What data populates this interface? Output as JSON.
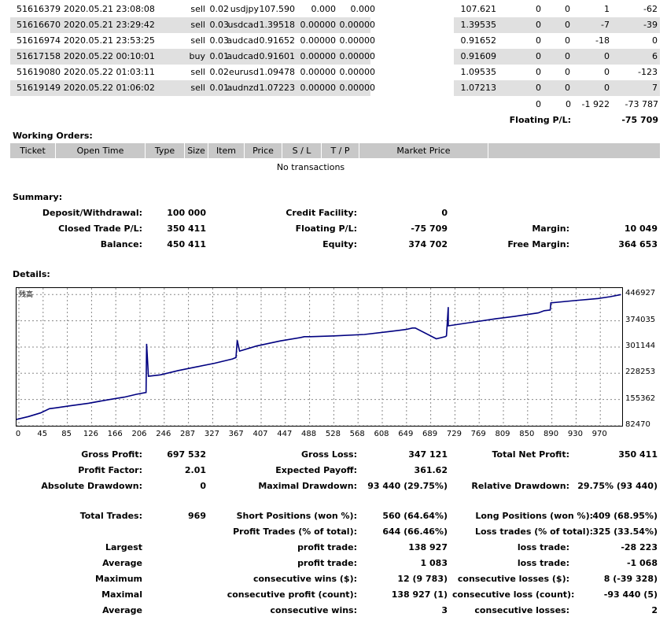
{
  "trades": [
    {
      "ticket": "51616379",
      "time": "2020.05.21 23:08:08",
      "type": "sell",
      "size": "0.02",
      "item": "usdjpy",
      "price": "107.590",
      "sl": "0.000",
      "tp": "0.000",
      "market": "107.621",
      "commission": "0",
      "taxes": "0",
      "swap": "1",
      "profit": "-62",
      "shaded": false
    },
    {
      "ticket": "51616670",
      "time": "2020.05.21 23:29:42",
      "type": "sell",
      "size": "0.03",
      "item": "usdcad",
      "price": "1.39518",
      "sl": "0.00000",
      "tp": "0.00000",
      "market": "1.39535",
      "commission": "0",
      "taxes": "0",
      "swap": "-7",
      "profit": "-39",
      "shaded": true
    },
    {
      "ticket": "51616974",
      "time": "2020.05.21 23:53:25",
      "type": "sell",
      "size": "0.03",
      "item": "audcad",
      "price": "0.91652",
      "sl": "0.00000",
      "tp": "0.00000",
      "market": "0.91652",
      "commission": "0",
      "taxes": "0",
      "swap": "-18",
      "profit": "0",
      "shaded": false
    },
    {
      "ticket": "51617158",
      "time": "2020.05.22 00:10:01",
      "type": "buy",
      "size": "0.01",
      "item": "audcad",
      "price": "0.91601",
      "sl": "0.00000",
      "tp": "0.00000",
      "market": "0.91609",
      "commission": "0",
      "taxes": "0",
      "swap": "0",
      "profit": "6",
      "shaded": true
    },
    {
      "ticket": "51619080",
      "time": "2020.05.22 01:03:11",
      "type": "sell",
      "size": "0.02",
      "item": "eurusd",
      "price": "1.09478",
      "sl": "0.00000",
      "tp": "0.00000",
      "market": "1.09535",
      "commission": "0",
      "taxes": "0",
      "swap": "0",
      "profit": "-123",
      "shaded": false
    },
    {
      "ticket": "51619149",
      "time": "2020.05.22 01:06:02",
      "type": "sell",
      "size": "0.01",
      "item": "audnzd",
      "price": "1.07223",
      "sl": "0.00000",
      "tp": "0.00000",
      "market": "1.07213",
      "commission": "0",
      "taxes": "0",
      "swap": "0",
      "profit": "7",
      "shaded": true
    }
  ],
  "totals": {
    "commission": "0",
    "taxes": "0",
    "swap": "-1 922",
    "profit": "-73 787"
  },
  "floating": {
    "label": "Floating P/L:",
    "value": "-75 709"
  },
  "working_orders": {
    "title": "Working Orders:",
    "headers": [
      "Ticket",
      "Open Time",
      "Type",
      "Size",
      "Item",
      "Price",
      "S / L",
      "T / P",
      "Market Price"
    ],
    "empty": "No transactions"
  },
  "summary": {
    "title": "Summary:",
    "deposit_label": "Deposit/Withdrawal:",
    "deposit": "100 000",
    "credit_label": "Credit Facility:",
    "credit": "0",
    "closed_label": "Closed Trade P/L:",
    "closed": "350 411",
    "floating_label": "Floating P/L:",
    "floating": "-75 709",
    "margin_label": "Margin:",
    "margin": "10 049",
    "balance_label": "Balance:",
    "balance": "450 411",
    "equity_label": "Equity:",
    "equity": "374 702",
    "free_margin_label": "Free Margin:",
    "free_margin": "364 653"
  },
  "details": {
    "title": "Details:"
  },
  "chart_data": {
    "type": "line",
    "title": "残高",
    "color": "#000080",
    "xlim": [
      0,
      1010
    ],
    "ylim": [
      82470,
      465000
    ],
    "x_ticks": [
      "0",
      "45",
      "85",
      "126",
      "166",
      "206",
      "246",
      "287",
      "327",
      "367",
      "407",
      "447",
      "488",
      "528",
      "568",
      "608",
      "649",
      "689",
      "729",
      "769",
      "809",
      "850",
      "890",
      "930",
      "970"
    ],
    "y_ticks": [
      "446927",
      "374035",
      "301144",
      "228253",
      "155362",
      "82470"
    ],
    "grid": true,
    "series": [
      {
        "x": [
          0,
          20,
          40,
          55,
          65,
          90,
          120,
          150,
          180,
          200,
          216,
          217,
          220,
          220,
          240,
          270,
          300,
          330,
          360,
          366,
          368,
          372,
          372,
          400,
          440,
          475,
          480,
          490,
          530,
          580,
          620,
          650,
          660,
          665,
          700,
          715,
          717,
          720,
          720,
          760,
          800,
          830,
          870,
          880,
          890,
          891,
          930,
          970,
          990,
          1008
        ],
        "y": [
          100000,
          108000,
          118000,
          130000,
          132000,
          138000,
          145000,
          154000,
          162000,
          170000,
          175000,
          310000,
          220000,
          220000,
          224000,
          236000,
          246000,
          256000,
          268000,
          272000,
          320000,
          290000,
          290000,
          304000,
          318000,
          328000,
          330000,
          330000,
          332000,
          336000,
          344000,
          350000,
          354000,
          354000,
          324000,
          330000,
          332000,
          412000,
          360000,
          370000,
          380000,
          386000,
          396000,
          402000,
          404000,
          424000,
          430000,
          436000,
          441000,
          446927
        ]
      }
    ]
  },
  "stats": {
    "gross_profit_label": "Gross Profit:",
    "gross_profit": "697 532",
    "gross_loss_label": "Gross Loss:",
    "gross_loss": "347 121",
    "total_net_label": "Total Net Profit:",
    "total_net": "350 411",
    "profit_factor_label": "Profit Factor:",
    "profit_factor": "2.01",
    "expected_payoff_label": "Expected Payoff:",
    "expected_payoff": "361.62",
    "abs_dd_label": "Absolute Drawdown:",
    "abs_dd": "0",
    "max_dd_label": "Maximal Drawdown:",
    "max_dd": "93 440 (29.75%)",
    "rel_dd_label": "Relative Drawdown:",
    "rel_dd": "29.75% (93 440)",
    "total_trades_label": "Total Trades:",
    "total_trades": "969",
    "short_label": "Short Positions (won %):",
    "short": "560 (64.64%)",
    "long_label": "Long Positions (won %):",
    "long": "409 (68.95%)",
    "profit_trades_label": "Profit Trades (% of total):",
    "profit_trades": "644 (66.46%)",
    "loss_trades_label": "Loss trades (% of total):",
    "loss_trades": "325 (33.54%)",
    "largest_label": "Largest",
    "largest_profit_label": "profit trade:",
    "largest_profit": "138 927",
    "largest_loss_label": "loss trade:",
    "largest_loss": "-28 223",
    "average_label": "Average",
    "average_profit_label": "profit trade:",
    "average_profit": "1 083",
    "average_loss_label": "loss trade:",
    "average_loss": "-1 068",
    "maximum_label": "Maximum",
    "max_cons_wins_label": "consecutive wins ($):",
    "max_cons_wins": "12 (9 783)",
    "max_cons_losses_label": "consecutive losses ($):",
    "max_cons_losses": "8 (-39 328)",
    "maximal_label": "Maximal",
    "maximal_profit_label": "consecutive profit (count):",
    "maximal_profit": "138 927 (1)",
    "maximal_loss_label": "consecutive loss (count):",
    "maximal_loss": "-93 440 (5)",
    "average2_label": "Average",
    "avg_cons_wins_label": "consecutive wins:",
    "avg_cons_wins": "3",
    "avg_cons_losses_label": "consecutive losses:",
    "avg_cons_losses": "2"
  }
}
